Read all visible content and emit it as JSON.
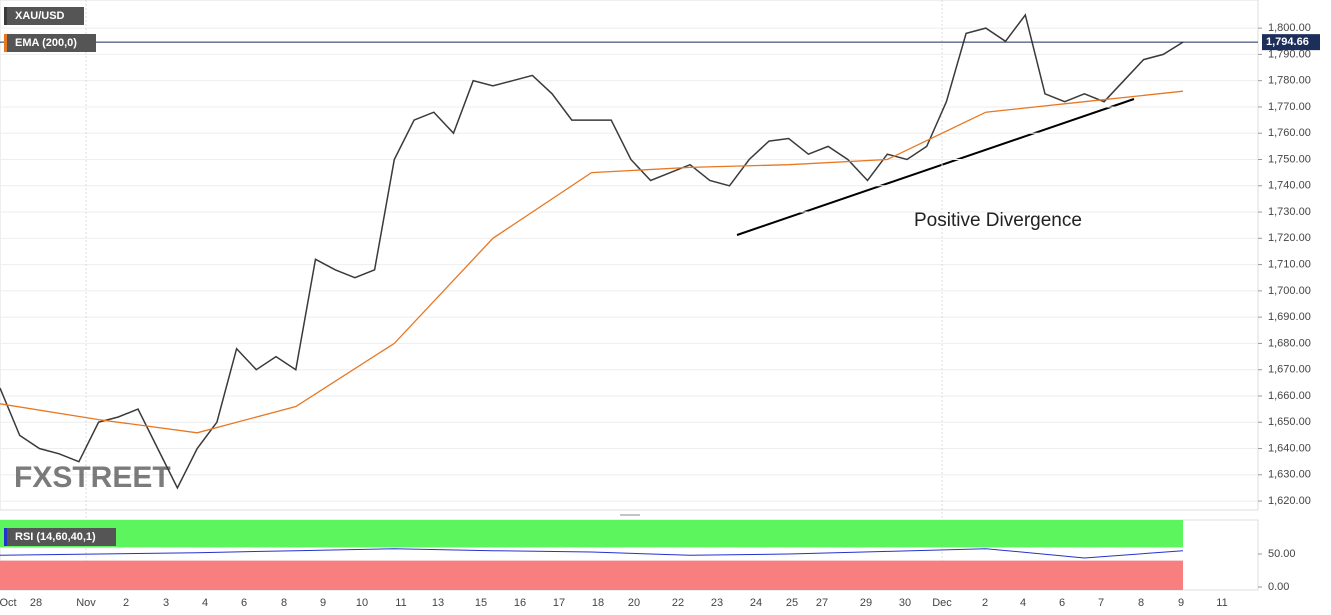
{
  "chart_data": {
    "type": "line",
    "title": "XAU/USD",
    "x_labels": [
      "Oct",
      "28",
      "Nov",
      "2",
      "3",
      "4",
      "6",
      "8",
      "9",
      "10",
      "11",
      "13",
      "15",
      "16",
      "17",
      "18",
      "20",
      "22",
      "23",
      "24",
      "25",
      "27",
      "29",
      "30",
      "Dec",
      "2",
      "4",
      "6",
      "7",
      "8",
      "9",
      "11"
    ],
    "series": [
      {
        "name": "XAU/USD",
        "color": "#3a3a3a",
        "values": [
          1663,
          1645,
          1640,
          1638,
          1635,
          1650,
          1652,
          1655,
          1640,
          1625,
          1640,
          1650,
          1678,
          1670,
          1675,
          1670,
          1712,
          1708,
          1705,
          1708,
          1750,
          1765,
          1768,
          1760,
          1780,
          1778,
          1780,
          1782,
          1775,
          1765,
          1765,
          1765,
          1750,
          1742,
          1745,
          1748,
          1742,
          1740,
          1750,
          1757,
          1758,
          1752,
          1755,
          1750,
          1742,
          1752,
          1750,
          1755,
          1772,
          1798,
          1800,
          1795,
          1805,
          1775,
          1772,
          1775,
          1772,
          1780,
          1788,
          1790,
          1794.66
        ]
      },
      {
        "name": "EMA (200,0)",
        "color": "#e87722",
        "values": [
          1657,
          1651,
          1646,
          1656,
          1680,
          1720,
          1745,
          1747,
          1748,
          1750,
          1768,
          1772,
          1776
        ]
      }
    ],
    "last_price": {
      "value": 1794.66,
      "label": "1,794.66"
    },
    "ylim": [
      1616.6,
      1810.7
    ],
    "yticks": [
      {
        "value": 1620,
        "label": "1,620.00"
      },
      {
        "value": 1630,
        "label": "1,630.00"
      },
      {
        "value": 1640,
        "label": "1,640.00"
      },
      {
        "value": 1650,
        "label": "1,650.00"
      },
      {
        "value": 1660,
        "label": "1,660.00"
      },
      {
        "value": 1670,
        "label": "1,670.00"
      },
      {
        "value": 1680,
        "label": "1,680.00"
      },
      {
        "value": 1690,
        "label": "1,690.00"
      },
      {
        "value": 1700,
        "label": "1,700.00"
      },
      {
        "value": 1710,
        "label": "1,710.00"
      },
      {
        "value": 1720,
        "label": "1,720.00"
      },
      {
        "value": 1730,
        "label": "1,730.00"
      },
      {
        "value": 1740,
        "label": "1,740.00"
      },
      {
        "value": 1750,
        "label": "1,750.00"
      },
      {
        "value": 1760,
        "label": "1,760.00"
      },
      {
        "value": 1770,
        "label": "1,770.00"
      },
      {
        "value": 1780,
        "label": "1,780.00"
      },
      {
        "value": 1790,
        "label": "1,790.00"
      },
      {
        "value": 1800,
        "label": "1,800.00"
      }
    ],
    "grid": true,
    "annotation": "Positive Divergence",
    "watermark": "FXSTREET",
    "rsi": {
      "name": "RSI (14,60,40,1)",
      "color": "#2233cc",
      "values": [
        48,
        50,
        52,
        55,
        58,
        55,
        53,
        48,
        50,
        54,
        58,
        44,
        55
      ],
      "upper": 60,
      "lower": 40,
      "ylim": [
        -4.5,
        101.5
      ],
      "yticks": [
        {
          "value": 50,
          "label": "50.00"
        },
        {
          "value": 0,
          "label": "0.00"
        }
      ]
    }
  }
}
